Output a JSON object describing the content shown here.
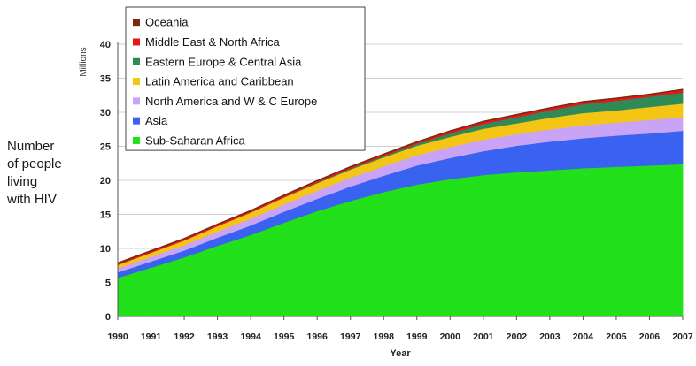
{
  "chart_data": {
    "type": "area",
    "stacked": true,
    "x": [
      1990,
      1991,
      1992,
      1993,
      1994,
      1995,
      1996,
      1997,
      1998,
      1999,
      2000,
      2001,
      2002,
      2003,
      2004,
      2005,
      2006,
      2007
    ],
    "x_tick_labels": [
      "1990",
      "1991",
      "1992",
      "1993",
      "1994",
      "1995",
      "1996",
      "1997",
      "1998",
      "1999",
      "2000",
      "2001",
      "2002",
      "2003",
      "2004",
      "2005",
      "2006",
      "2007"
    ],
    "xlabel": "Year",
    "ylabel": "Millions",
    "ylim": [
      0,
      40
    ],
    "y_ticks": [
      0,
      5,
      10,
      15,
      20,
      25,
      30,
      35,
      40
    ],
    "y_tick_labels": [
      "0",
      "5",
      "10",
      "15",
      "20",
      "25",
      "30",
      "35",
      "40"
    ],
    "side_label_lines": [
      "Number",
      "of people",
      "living",
      "with HIV"
    ],
    "grid": "horizontal",
    "legend_position": "top-left",
    "series": [
      {
        "name": "Sub-Saharan Africa",
        "color": "#22e01a",
        "values": [
          5.7,
          7.2,
          8.7,
          10.4,
          12.0,
          13.8,
          15.5,
          17.0,
          18.3,
          19.4,
          20.2,
          20.8,
          21.2,
          21.5,
          21.8,
          22.0,
          22.2,
          22.4
        ]
      },
      {
        "name": "Asia",
        "color": "#3a62f0",
        "values": [
          0.8,
          0.9,
          1.0,
          1.2,
          1.4,
          1.6,
          1.8,
          2.1,
          2.4,
          2.8,
          3.1,
          3.5,
          3.9,
          4.2,
          4.4,
          4.6,
          4.7,
          4.9
        ]
      },
      {
        "name": "North America and W & C Europe",
        "color": "#c9a3f5",
        "values": [
          0.6,
          0.7,
          0.8,
          0.9,
          1.0,
          1.1,
          1.2,
          1.3,
          1.4,
          1.5,
          1.6,
          1.7,
          1.7,
          1.8,
          1.9,
          1.9,
          2.0,
          2.0
        ]
      },
      {
        "name": "Latin America and Caribbean",
        "color": "#f4c514",
        "values": [
          0.5,
          0.6,
          0.7,
          0.8,
          0.9,
          1.0,
          1.1,
          1.2,
          1.3,
          1.4,
          1.5,
          1.6,
          1.6,
          1.7,
          1.8,
          1.8,
          1.9,
          2.0
        ]
      },
      {
        "name": "Eastern Europe & Central Asia",
        "color": "#2e8b57",
        "values": [
          0.0,
          0.0,
          0.0,
          0.0,
          0.0,
          0.05,
          0.1,
          0.15,
          0.2,
          0.3,
          0.5,
          0.7,
          0.9,
          1.1,
          1.3,
          1.4,
          1.5,
          1.6
        ]
      },
      {
        "name": "Middle East & North Africa",
        "color": "#e8161a",
        "values": [
          0.2,
          0.2,
          0.2,
          0.2,
          0.2,
          0.2,
          0.2,
          0.2,
          0.2,
          0.2,
          0.3,
          0.3,
          0.3,
          0.3,
          0.3,
          0.3,
          0.3,
          0.4
        ]
      },
      {
        "name": "Oceania",
        "color": "#7a2a12",
        "values": [
          0.1,
          0.1,
          0.1,
          0.1,
          0.1,
          0.1,
          0.1,
          0.1,
          0.1,
          0.1,
          0.1,
          0.1,
          0.1,
          0.1,
          0.1,
          0.1,
          0.1,
          0.1
        ]
      }
    ],
    "legend_order": [
      "Oceania",
      "Middle East & North Africa",
      "Eastern Europe & Central Asia",
      "Latin America and Caribbean",
      "North America and W & C Europe",
      "Asia",
      "Sub-Saharan Africa"
    ]
  }
}
